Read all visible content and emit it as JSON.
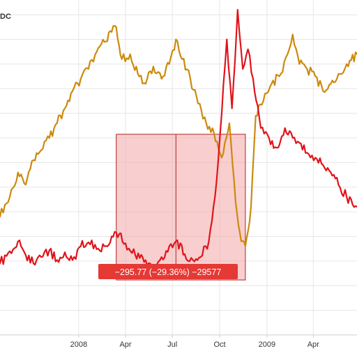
{
  "symbol_label": "DC",
  "colors": {
    "background": "#ffffff",
    "grid": "#e6e6e6",
    "series_gold": "#cc8a0c",
    "series_red": "#e0141a",
    "measure_fill": "#f2a6a6",
    "measure_line": "#b22222",
    "measure_label_bg": "#e53935",
    "axis_text": "#333333"
  },
  "measure": {
    "label": "−295.77 (−29.36%) −29577",
    "start_date": "2008-03-14",
    "end_date": "2008-11-20",
    "start_value": 1007.4,
    "end_value": 711.6,
    "mid_date": "2008-07-08"
  },
  "chart_data": {
    "type": "line",
    "title": "",
    "xlabel": "",
    "ylabel": "",
    "x_range": [
      "2007-08-01",
      "2009-06-25"
    ],
    "ylim": [
      600,
      1280
    ],
    "y_axis_visible": false,
    "grid": true,
    "x_ticks": [
      {
        "label": "2008",
        "date": "2008-01-01"
      },
      {
        "label": "Apr",
        "date": "2008-04-01"
      },
      {
        "label": "Jul",
        "date": "2008-07-01"
      },
      {
        "label": "Oct",
        "date": "2008-10-01"
      },
      {
        "label": "2009",
        "date": "2009-01-01"
      },
      {
        "label": "Apr",
        "date": "2009-04-01"
      }
    ],
    "series": [
      {
        "color_key": "series_gold",
        "points": [
          [
            "2007-08-01",
            840
          ],
          [
            "2007-08-20",
            880
          ],
          [
            "2007-09-05",
            930
          ],
          [
            "2007-09-20",
            905
          ],
          [
            "2007-10-05",
            955
          ],
          [
            "2007-10-20",
            975
          ],
          [
            "2007-11-05",
            1000
          ],
          [
            "2007-11-20",
            1030
          ],
          [
            "2007-12-05",
            1060
          ],
          [
            "2007-12-20",
            1095
          ],
          [
            "2008-01-05",
            1120
          ],
          [
            "2008-01-20",
            1140
          ],
          [
            "2008-02-05",
            1175
          ],
          [
            "2008-02-20",
            1195
          ],
          [
            "2008-03-05",
            1215
          ],
          [
            "2008-03-14",
            1225
          ],
          [
            "2008-03-25",
            1160
          ],
          [
            "2008-04-10",
            1170
          ],
          [
            "2008-04-25",
            1130
          ],
          [
            "2008-05-10",
            1110
          ],
          [
            "2008-05-25",
            1145
          ],
          [
            "2008-06-10",
            1120
          ],
          [
            "2008-06-25",
            1150
          ],
          [
            "2008-07-08",
            1200
          ],
          [
            "2008-07-20",
            1160
          ],
          [
            "2008-08-05",
            1120
          ],
          [
            "2008-08-20",
            1070
          ],
          [
            "2008-09-05",
            1030
          ],
          [
            "2008-09-20",
            1010
          ],
          [
            "2008-10-05",
            960
          ],
          [
            "2008-10-20",
            1030
          ],
          [
            "2008-11-01",
            870
          ],
          [
            "2008-11-12",
            790
          ],
          [
            "2008-11-20",
            780
          ],
          [
            "2008-12-01",
            860
          ],
          [
            "2008-12-10",
            1045
          ],
          [
            "2008-12-25",
            1075
          ],
          [
            "2009-01-10",
            1110
          ],
          [
            "2009-01-25",
            1125
          ],
          [
            "2009-02-10",
            1170
          ],
          [
            "2009-02-20",
            1210
          ],
          [
            "2009-03-05",
            1150
          ],
          [
            "2009-03-20",
            1140
          ],
          [
            "2009-04-05",
            1125
          ],
          [
            "2009-04-20",
            1095
          ],
          [
            "2009-05-05",
            1110
          ],
          [
            "2009-05-20",
            1130
          ],
          [
            "2009-06-05",
            1150
          ],
          [
            "2009-06-25",
            1170
          ]
        ]
      },
      {
        "color_key": "series_red",
        "points": [
          [
            "2007-08-01",
            745
          ],
          [
            "2007-08-20",
            770
          ],
          [
            "2007-09-05",
            790
          ],
          [
            "2007-09-20",
            762
          ],
          [
            "2007-10-05",
            745
          ],
          [
            "2007-10-20",
            758
          ],
          [
            "2007-11-05",
            772
          ],
          [
            "2007-11-20",
            752
          ],
          [
            "2007-12-05",
            768
          ],
          [
            "2007-12-20",
            752
          ],
          [
            "2008-01-05",
            780
          ],
          [
            "2008-01-20",
            788
          ],
          [
            "2008-02-05",
            774
          ],
          [
            "2008-02-20",
            780
          ],
          [
            "2008-03-05",
            800
          ],
          [
            "2008-03-14",
            808
          ],
          [
            "2008-04-01",
            786
          ],
          [
            "2008-04-20",
            762
          ],
          [
            "2008-05-10",
            752
          ],
          [
            "2008-05-25",
            738
          ],
          [
            "2008-06-10",
            758
          ],
          [
            "2008-06-25",
            780
          ],
          [
            "2008-07-08",
            790
          ],
          [
            "2008-07-25",
            764
          ],
          [
            "2008-08-10",
            752
          ],
          [
            "2008-08-25",
            758
          ],
          [
            "2008-09-10",
            790
          ],
          [
            "2008-09-25",
            912
          ],
          [
            "2008-10-05",
            1050
          ],
          [
            "2008-10-15",
            1200
          ],
          [
            "2008-10-25",
            1060
          ],
          [
            "2008-11-05",
            1260
          ],
          [
            "2008-11-15",
            1140
          ],
          [
            "2008-11-25",
            1180
          ],
          [
            "2008-12-05",
            1120
          ],
          [
            "2008-12-20",
            1020
          ],
          [
            "2009-01-05",
            1000
          ],
          [
            "2009-01-20",
            980
          ],
          [
            "2009-02-05",
            1020
          ],
          [
            "2009-02-20",
            1000
          ],
          [
            "2009-03-05",
            990
          ],
          [
            "2009-03-20",
            970
          ],
          [
            "2009-04-05",
            960
          ],
          [
            "2009-04-20",
            945
          ],
          [
            "2009-05-05",
            930
          ],
          [
            "2009-05-20",
            905
          ],
          [
            "2009-06-05",
            880
          ],
          [
            "2009-06-25",
            860
          ]
        ]
      }
    ]
  }
}
